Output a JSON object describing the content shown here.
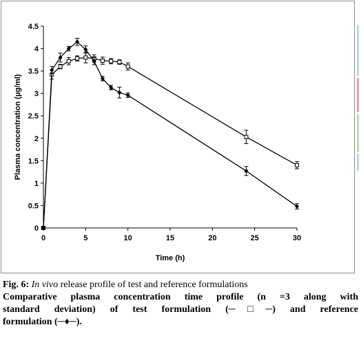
{
  "figure": {
    "caption_label": "Fig. 6:",
    "caption_title_italic": "In vivo",
    "caption_title_rest": " release profile of test and reference formulations",
    "caption_line2": "Comparative plasma concentration time profile (n =3 along with",
    "caption_line3": "standard deviation) of test formulation (─□─) and reference",
    "caption_line4": "formulation (─♦─)."
  },
  "colors": {
    "frame": "#8c8c8c",
    "strip_top": "#b8d8ea",
    "strip_mid": "#e8a0b8",
    "strip_low": "#b9dcae",
    "strip_bottom": "#b8d8ea"
  },
  "chart_data": {
    "type": "line",
    "title": "",
    "xlabel": "Time (h)",
    "ylabel": "Plasma concentration (µg/ml)",
    "xlim": [
      0,
      30
    ],
    "ylim": [
      0,
      4.5
    ],
    "xticks": [
      0,
      5,
      10,
      15,
      20,
      25,
      30
    ],
    "yticks": [
      0,
      0.5,
      1,
      1.5,
      2,
      2.5,
      3,
      3.5,
      4,
      4.5
    ],
    "ytick_labels": [
      "0",
      "0.5",
      "1",
      "1.5",
      "2",
      "2.5",
      "3",
      "3.5",
      "4",
      "4.5"
    ],
    "grid": false,
    "legend": "none",
    "series": [
      {
        "marker": "open-square",
        "x": [
          0,
          1,
          2,
          3,
          4,
          5,
          6,
          7,
          8,
          9,
          10,
          24,
          30
        ],
        "y": [
          0,
          3.42,
          3.6,
          3.72,
          3.78,
          3.8,
          3.78,
          3.73,
          3.72,
          3.7,
          3.6,
          2.03,
          1.4
        ],
        "err": [
          0,
          0.1,
          0.05,
          0.08,
          0.06,
          0.12,
          0.08,
          0.08,
          0.06,
          0.05,
          0.08,
          0.15,
          0.08
        ]
      },
      {
        "marker": "filled-diamond",
        "x": [
          0,
          1,
          2,
          3,
          4,
          5,
          6,
          7,
          8,
          9,
          10,
          24,
          30
        ],
        "y": [
          0,
          3.52,
          3.8,
          4.0,
          4.15,
          3.98,
          3.72,
          3.33,
          3.13,
          3.02,
          2.96,
          1.27,
          0.48
        ],
        "err": [
          0,
          0.08,
          0.1,
          0.05,
          0.08,
          0.08,
          0.08,
          0.05,
          0.05,
          0.12,
          0.05,
          0.1,
          0.06
        ]
      }
    ]
  }
}
